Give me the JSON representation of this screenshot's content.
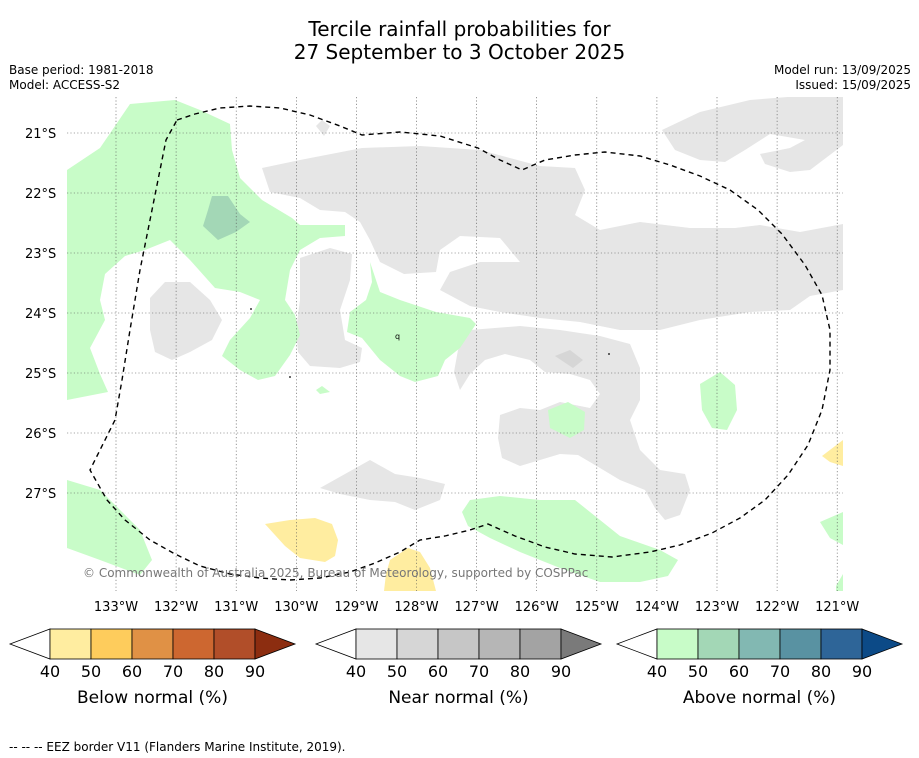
{
  "title_line1": "Tercile rainfall probabilities for",
  "title_line2": "27 September to 3 October 2025",
  "base_period": "Base period: 1981-2018",
  "model": "Model: ACCESS-S2",
  "model_run": "Model run: 13/09/2025",
  "issued": "Issued: 15/09/2025",
  "copyright": "© Commonwealth of Australia 2025, Bureau of Meteorology, supported by COSPPac",
  "lat_labels": [
    "21°S",
    "22°S",
    "23°S",
    "24°S",
    "25°S",
    "26°S",
    "27°S"
  ],
  "lon_labels": [
    "133°W",
    "132°W",
    "131°W",
    "130°W",
    "129°W",
    "128°W",
    "127°W",
    "126°W",
    "125°W",
    "124°W",
    "123°W",
    "122°W",
    "121°W"
  ],
  "legends": [
    {
      "label": "Below normal (%)",
      "ticks": [
        "40",
        "50",
        "60",
        "70",
        "80",
        "90"
      ],
      "colors": [
        "#ffffff",
        "#ffeda0",
        "#fecc5c",
        "#e09145",
        "#cd6730",
        "#b14e29",
        "#8c2d10"
      ]
    },
    {
      "label": "Near normal (%)",
      "ticks": [
        "40",
        "50",
        "60",
        "70",
        "80",
        "90"
      ],
      "colors": [
        "#ffffff",
        "#e6e6e6",
        "#d6d6d6",
        "#c6c6c6",
        "#b6b6b6",
        "#a3a3a3",
        "#7a7a7a"
      ]
    },
    {
      "label": "Above normal (%)",
      "ticks": [
        "40",
        "50",
        "60",
        "70",
        "80",
        "90"
      ],
      "colors": [
        "#ffffff",
        "#c8fcc8",
        "#a3d7b6",
        "#82b8b2",
        "#5992a2",
        "#2e6598",
        "#0c4a87"
      ]
    }
  ],
  "footer": "--  --  -- EEZ border V11 (Flanders Marine Institute, 2019)."
}
